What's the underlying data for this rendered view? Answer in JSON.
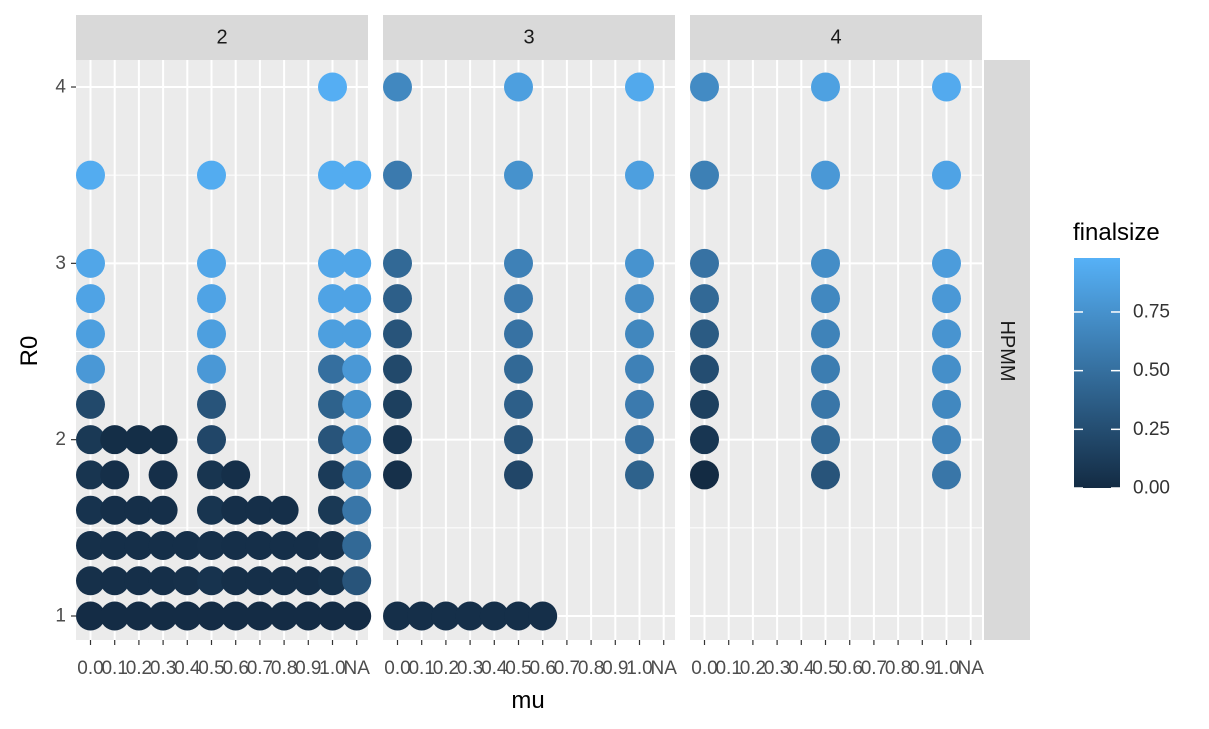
{
  "chart_data": {
    "type": "scatter",
    "xlabel": "mu",
    "ylabel": "R0",
    "x_categories": [
      "0.0",
      "0.1",
      "0.2",
      "0.3",
      "0.4",
      "0.5",
      "0.6",
      "0.7",
      "0.8",
      "0.9",
      "1.0",
      "NA"
    ],
    "y_ticks": [
      1,
      2,
      3,
      4
    ],
    "ylim": [
      0.85,
      4.15
    ],
    "row_strip": "HPMM",
    "grid": true,
    "legend": {
      "title": "finalsize",
      "placement": "right",
      "ticks": [
        "0.00",
        "0.25",
        "0.50",
        "0.75"
      ],
      "range": [
        0,
        0.98
      ],
      "low_color": "#132B43",
      "high_color": "#56B1F7"
    },
    "panels": [
      {
        "label": "2",
        "points": [
          {
            "x": "0.0",
            "y": 1.0,
            "v": 0.01
          },
          {
            "x": "0.1",
            "y": 1.0,
            "v": 0.01
          },
          {
            "x": "0.2",
            "y": 1.0,
            "v": 0.01
          },
          {
            "x": "0.3",
            "y": 1.0,
            "v": 0.01
          },
          {
            "x": "0.4",
            "y": 1.0,
            "v": 0.01
          },
          {
            "x": "0.5",
            "y": 1.0,
            "v": 0.01
          },
          {
            "x": "0.6",
            "y": 1.0,
            "v": 0.01
          },
          {
            "x": "0.7",
            "y": 1.0,
            "v": 0.01
          },
          {
            "x": "0.8",
            "y": 1.0,
            "v": 0.01
          },
          {
            "x": "0.9",
            "y": 1.0,
            "v": 0.01
          },
          {
            "x": "1.0",
            "y": 1.0,
            "v": 0.01
          },
          {
            "x": "NA",
            "y": 1.0,
            "v": 0.01
          },
          {
            "x": "0.0",
            "y": 1.2,
            "v": 0.04
          },
          {
            "x": "0.1",
            "y": 1.2,
            "v": 0.03
          },
          {
            "x": "0.2",
            "y": 1.2,
            "v": 0.03
          },
          {
            "x": "0.3",
            "y": 1.2,
            "v": 0.03
          },
          {
            "x": "0.4",
            "y": 1.2,
            "v": 0.04
          },
          {
            "x": "0.5",
            "y": 1.2,
            "v": 0.06
          },
          {
            "x": "0.6",
            "y": 1.2,
            "v": 0.03
          },
          {
            "x": "0.7",
            "y": 1.2,
            "v": 0.03
          },
          {
            "x": "0.8",
            "y": 1.2,
            "v": 0.03
          },
          {
            "x": "0.9",
            "y": 1.2,
            "v": 0.03
          },
          {
            "x": "1.0",
            "y": 1.2,
            "v": 0.05
          },
          {
            "x": "NA",
            "y": 1.2,
            "v": 0.3
          },
          {
            "x": "0.0",
            "y": 1.4,
            "v": 0.04
          },
          {
            "x": "0.1",
            "y": 1.4,
            "v": 0.03
          },
          {
            "x": "0.2",
            "y": 1.4,
            "v": 0.03
          },
          {
            "x": "0.3",
            "y": 1.4,
            "v": 0.03
          },
          {
            "x": "0.4",
            "y": 1.4,
            "v": 0.03
          },
          {
            "x": "0.5",
            "y": 1.4,
            "v": 0.04
          },
          {
            "x": "0.6",
            "y": 1.4,
            "v": 0.03
          },
          {
            "x": "0.7",
            "y": 1.4,
            "v": 0.03
          },
          {
            "x": "0.8",
            "y": 1.4,
            "v": 0.03
          },
          {
            "x": "0.9",
            "y": 1.4,
            "v": 0.03
          },
          {
            "x": "1.0",
            "y": 1.4,
            "v": 0.04
          },
          {
            "x": "NA",
            "y": 1.4,
            "v": 0.45
          },
          {
            "x": "0.0",
            "y": 1.6,
            "v": 0.06
          },
          {
            "x": "0.1",
            "y": 1.6,
            "v": 0.03
          },
          {
            "x": "0.2",
            "y": 1.6,
            "v": 0.03
          },
          {
            "x": "0.3",
            "y": 1.6,
            "v": 0.03
          },
          {
            "x": "0.5",
            "y": 1.6,
            "v": 0.07
          },
          {
            "x": "0.6",
            "y": 1.6,
            "v": 0.03
          },
          {
            "x": "0.7",
            "y": 1.6,
            "v": 0.03
          },
          {
            "x": "0.8",
            "y": 1.6,
            "v": 0.03
          },
          {
            "x": "1.0",
            "y": 1.6,
            "v": 0.1
          },
          {
            "x": "NA",
            "y": 1.6,
            "v": 0.55
          },
          {
            "x": "0.0",
            "y": 1.8,
            "v": 0.07
          },
          {
            "x": "0.1",
            "y": 1.8,
            "v": 0.03
          },
          {
            "x": "0.3",
            "y": 1.8,
            "v": 0.03
          },
          {
            "x": "0.5",
            "y": 1.8,
            "v": 0.07
          },
          {
            "x": "0.6",
            "y": 1.8,
            "v": 0.03
          },
          {
            "x": "1.0",
            "y": 1.8,
            "v": 0.12
          },
          {
            "x": "NA",
            "y": 1.8,
            "v": 0.62
          },
          {
            "x": "0.0",
            "y": 2.0,
            "v": 0.1
          },
          {
            "x": "0.1",
            "y": 2.0,
            "v": 0.02
          },
          {
            "x": "0.2",
            "y": 2.0,
            "v": 0.02
          },
          {
            "x": "0.3",
            "y": 2.0,
            "v": 0.02
          },
          {
            "x": "0.5",
            "y": 2.0,
            "v": 0.2
          },
          {
            "x": "1.0",
            "y": 2.0,
            "v": 0.3
          },
          {
            "x": "NA",
            "y": 2.0,
            "v": 0.7
          },
          {
            "x": "0.0",
            "y": 2.2,
            "v": 0.22
          },
          {
            "x": "0.5",
            "y": 2.2,
            "v": 0.3
          },
          {
            "x": "1.0",
            "y": 2.2,
            "v": 0.4
          },
          {
            "x": "NA",
            "y": 2.2,
            "v": 0.75
          },
          {
            "x": "0.0",
            "y": 2.4,
            "v": 0.8
          },
          {
            "x": "0.5",
            "y": 2.4,
            "v": 0.8
          },
          {
            "x": "1.0",
            "y": 2.4,
            "v": 0.5
          },
          {
            "x": "NA",
            "y": 2.4,
            "v": 0.8
          },
          {
            "x": "0.0",
            "y": 2.6,
            "v": 0.85
          },
          {
            "x": "0.5",
            "y": 2.6,
            "v": 0.85
          },
          {
            "x": "1.0",
            "y": 2.6,
            "v": 0.85
          },
          {
            "x": "NA",
            "y": 2.6,
            "v": 0.85
          },
          {
            "x": "0.0",
            "y": 2.8,
            "v": 0.88
          },
          {
            "x": "0.5",
            "y": 2.8,
            "v": 0.88
          },
          {
            "x": "1.0",
            "y": 2.8,
            "v": 0.88
          },
          {
            "x": "NA",
            "y": 2.8,
            "v": 0.88
          },
          {
            "x": "0.0",
            "y": 3.0,
            "v": 0.9
          },
          {
            "x": "0.5",
            "y": 3.0,
            "v": 0.9
          },
          {
            "x": "1.0",
            "y": 3.0,
            "v": 0.9
          },
          {
            "x": "NA",
            "y": 3.0,
            "v": 0.9
          },
          {
            "x": "0.0",
            "y": 3.5,
            "v": 0.94
          },
          {
            "x": "0.5",
            "y": 3.5,
            "v": 0.94
          },
          {
            "x": "1.0",
            "y": 3.5,
            "v": 0.94
          },
          {
            "x": "NA",
            "y": 3.5,
            "v": 0.94
          },
          {
            "x": "1.0",
            "y": 4.0,
            "v": 0.96
          }
        ]
      },
      {
        "label": "3",
        "points": [
          {
            "x": "0.0",
            "y": 1.0,
            "v": 0.03
          },
          {
            "x": "0.1",
            "y": 1.0,
            "v": 0.03
          },
          {
            "x": "0.2",
            "y": 1.0,
            "v": 0.03
          },
          {
            "x": "0.3",
            "y": 1.0,
            "v": 0.03
          },
          {
            "x": "0.4",
            "y": 1.0,
            "v": 0.03
          },
          {
            "x": "0.5",
            "y": 1.0,
            "v": 0.03
          },
          {
            "x": "0.6",
            "y": 1.0,
            "v": 0.03
          },
          {
            "x": "0.0",
            "y": 1.8,
            "v": 0.04
          },
          {
            "x": "0.5",
            "y": 1.8,
            "v": 0.2
          },
          {
            "x": "1.0",
            "y": 1.8,
            "v": 0.4
          },
          {
            "x": "0.0",
            "y": 2.0,
            "v": 0.08
          },
          {
            "x": "0.5",
            "y": 2.0,
            "v": 0.3
          },
          {
            "x": "1.0",
            "y": 2.0,
            "v": 0.5
          },
          {
            "x": "0.0",
            "y": 2.2,
            "v": 0.15
          },
          {
            "x": "0.5",
            "y": 2.2,
            "v": 0.38
          },
          {
            "x": "1.0",
            "y": 2.2,
            "v": 0.58
          },
          {
            "x": "0.0",
            "y": 2.4,
            "v": 0.22
          },
          {
            "x": "0.5",
            "y": 2.4,
            "v": 0.45
          },
          {
            "x": "1.0",
            "y": 2.4,
            "v": 0.63
          },
          {
            "x": "0.0",
            "y": 2.6,
            "v": 0.3
          },
          {
            "x": "0.5",
            "y": 2.6,
            "v": 0.52
          },
          {
            "x": "1.0",
            "y": 2.6,
            "v": 0.67
          },
          {
            "x": "0.0",
            "y": 2.8,
            "v": 0.38
          },
          {
            "x": "0.5",
            "y": 2.8,
            "v": 0.58
          },
          {
            "x": "1.0",
            "y": 2.8,
            "v": 0.71
          },
          {
            "x": "0.0",
            "y": 3.0,
            "v": 0.45
          },
          {
            "x": "0.5",
            "y": 3.0,
            "v": 0.63
          },
          {
            "x": "1.0",
            "y": 3.0,
            "v": 0.76
          },
          {
            "x": "0.0",
            "y": 3.5,
            "v": 0.58
          },
          {
            "x": "0.5",
            "y": 3.5,
            "v": 0.75
          },
          {
            "x": "1.0",
            "y": 3.5,
            "v": 0.85
          },
          {
            "x": "0.0",
            "y": 4.0,
            "v": 0.68
          },
          {
            "x": "0.5",
            "y": 4.0,
            "v": 0.85
          },
          {
            "x": "1.0",
            "y": 4.0,
            "v": 0.92
          }
        ]
      },
      {
        "label": "4",
        "points": [
          {
            "x": "0.0",
            "y": 1.8,
            "v": 0.0
          },
          {
            "x": "0.5",
            "y": 1.8,
            "v": 0.3
          },
          {
            "x": "1.0",
            "y": 1.8,
            "v": 0.55
          },
          {
            "x": "0.0",
            "y": 2.0,
            "v": 0.08
          },
          {
            "x": "0.5",
            "y": 2.0,
            "v": 0.45
          },
          {
            "x": "1.0",
            "y": 2.0,
            "v": 0.63
          },
          {
            "x": "0.0",
            "y": 2.2,
            "v": 0.15
          },
          {
            "x": "0.5",
            "y": 2.2,
            "v": 0.55
          },
          {
            "x": "1.0",
            "y": 2.2,
            "v": 0.68
          },
          {
            "x": "0.0",
            "y": 2.4,
            "v": 0.25
          },
          {
            "x": "0.5",
            "y": 2.4,
            "v": 0.6
          },
          {
            "x": "1.0",
            "y": 2.4,
            "v": 0.73
          },
          {
            "x": "0.0",
            "y": 2.6,
            "v": 0.35
          },
          {
            "x": "0.5",
            "y": 2.6,
            "v": 0.64
          },
          {
            "x": "1.0",
            "y": 2.6,
            "v": 0.77
          },
          {
            "x": "0.0",
            "y": 2.8,
            "v": 0.45
          },
          {
            "x": "0.5",
            "y": 2.8,
            "v": 0.68
          },
          {
            "x": "1.0",
            "y": 2.8,
            "v": 0.8
          },
          {
            "x": "0.0",
            "y": 3.0,
            "v": 0.52
          },
          {
            "x": "0.5",
            "y": 3.0,
            "v": 0.72
          },
          {
            "x": "1.0",
            "y": 3.0,
            "v": 0.83
          },
          {
            "x": "0.0",
            "y": 3.5,
            "v": 0.62
          },
          {
            "x": "0.5",
            "y": 3.5,
            "v": 0.8
          },
          {
            "x": "1.0",
            "y": 3.5,
            "v": 0.88
          },
          {
            "x": "0.0",
            "y": 4.0,
            "v": 0.7
          },
          {
            "x": "0.5",
            "y": 4.0,
            "v": 0.86
          },
          {
            "x": "1.0",
            "y": 4.0,
            "v": 0.93
          }
        ]
      }
    ]
  }
}
